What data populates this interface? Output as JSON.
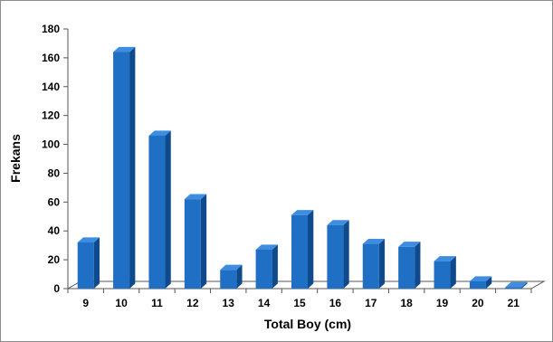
{
  "chart_data": {
    "type": "bar",
    "title": "",
    "xlabel": "Total Boy (cm)",
    "ylabel": "Frekans",
    "categories": [
      "9",
      "10",
      "11",
      "12",
      "13",
      "14",
      "15",
      "16",
      "17",
      "18",
      "19",
      "20",
      "21"
    ],
    "values": [
      32,
      164,
      106,
      62,
      13,
      27,
      51,
      44,
      31,
      29,
      19,
      5,
      1
    ],
    "ylim": [
      0,
      180
    ],
    "yticks": [
      "0",
      "20",
      "40",
      "60",
      "80",
      "100",
      "120",
      "140",
      "160",
      "180"
    ],
    "grid": false,
    "legend": "none",
    "bar_colors": {
      "front": "#1f6fc5",
      "side": "#0f4a8c",
      "top": "#3f8de0"
    }
  }
}
